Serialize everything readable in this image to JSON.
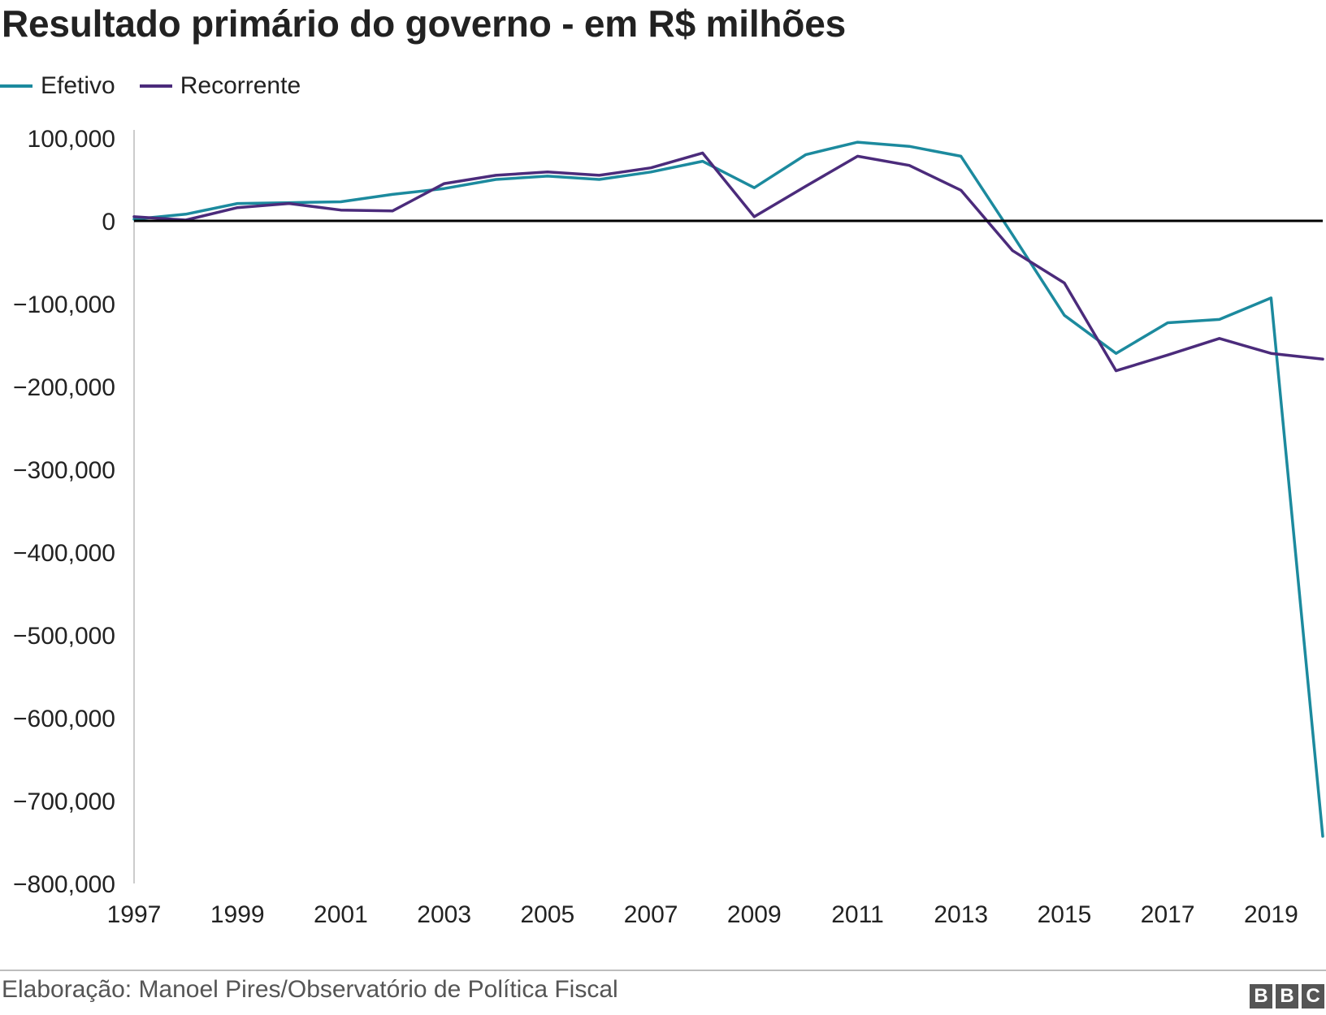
{
  "title": "Resultado primário do governo - em R$ milhões",
  "legend": [
    {
      "label": "Efetivo",
      "color": "#1c8a9e"
    },
    {
      "label": "Recorrente",
      "color": "#4b2b7b"
    }
  ],
  "source": "Elaboração: Manoel Pires/Observatório de Política Fiscal",
  "logo": {
    "text": "BBC",
    "letters": [
      "B",
      "B",
      "C"
    ]
  },
  "chart_data": {
    "type": "line",
    "title": "Resultado primário do governo - em R$ milhões",
    "xlabel": "",
    "ylabel": "",
    "x": [
      1997,
      1998,
      1999,
      2000,
      2001,
      2002,
      2003,
      2004,
      2005,
      2006,
      2007,
      2008,
      2009,
      2010,
      2011,
      2012,
      2013,
      2014,
      2015,
      2016,
      2017,
      2018,
      2019,
      2020
    ],
    "xlim": [
      1997,
      2020
    ],
    "ylim": [
      -800000,
      100000
    ],
    "x_ticks": [
      1997,
      1999,
      2001,
      2003,
      2005,
      2007,
      2009,
      2011,
      2013,
      2015,
      2017,
      2019
    ],
    "x_tick_labels": [
      "1997",
      "1999",
      "2001",
      "2003",
      "2005",
      "2007",
      "2009",
      "2011",
      "2013",
      "2015",
      "2017",
      "2019"
    ],
    "y_ticks": [
      100000,
      0,
      -100000,
      -200000,
      -300000,
      -400000,
      -500000,
      -600000,
      -700000,
      -800000
    ],
    "y_tick_labels": [
      "100,000",
      "0",
      "−100,000",
      "−200,000",
      "−300,000",
      "−400,000",
      "−500,000",
      "−600,000",
      "−700,000",
      "−800,000"
    ],
    "zero_line": true,
    "grid": false,
    "legend_position": "top-left",
    "series": [
      {
        "name": "Efetivo",
        "color": "#1c8a9e",
        "values": [
          2000,
          8000,
          21000,
          22000,
          23000,
          32000,
          39000,
          50000,
          54000,
          50000,
          59000,
          72000,
          40000,
          80000,
          95000,
          90000,
          78000,
          -17000,
          -114000,
          -160000,
          -123000,
          -119000,
          -93000,
          -743000
        ]
      },
      {
        "name": "Recorrente",
        "color": "#4b2b7b",
        "values": [
          5000,
          1000,
          16000,
          21000,
          13000,
          12000,
          45000,
          55000,
          59000,
          55000,
          64000,
          82000,
          5000,
          42000,
          78000,
          67000,
          37000,
          -36000,
          -75000,
          -181000,
          -162000,
          -142000,
          -160000,
          -167000
        ]
      }
    ]
  }
}
